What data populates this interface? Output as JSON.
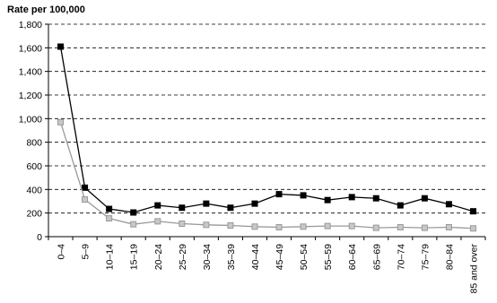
{
  "chart_data": {
    "type": "line",
    "title": "Rate per 100,000",
    "xlabel": "",
    "ylabel": "",
    "ylim": [
      0,
      1800
    ],
    "yticks": [
      0,
      200,
      400,
      600,
      800,
      1000,
      1200,
      1400,
      1600,
      1800
    ],
    "ytick_labels": [
      "0",
      "200",
      "400",
      "600",
      "800",
      "1,000",
      "1,200",
      "1,400",
      "1,600",
      "1,800"
    ],
    "grid": "horizontal-dashed",
    "legend": "none",
    "categories": [
      "0–4",
      "5–9",
      "10–14",
      "15–19",
      "20–24",
      "25–29",
      "30–34",
      "35–39",
      "40–44",
      "45–49",
      "50–54",
      "55–59",
      "60–64",
      "65–69",
      "70–74",
      "75–79",
      "80–84",
      "85 and over"
    ],
    "series": [
      {
        "color": "#000000",
        "marker_fill": "#000000",
        "values": [
          1610,
          415,
          235,
          205,
          265,
          245,
          280,
          245,
          280,
          360,
          350,
          310,
          335,
          325,
          265,
          325,
          275,
          215
        ]
      },
      {
        "color": "#999999",
        "marker_fill": "#c8c8c8",
        "values": [
          970,
          315,
          155,
          105,
          130,
          110,
          100,
          95,
          85,
          80,
          85,
          90,
          90,
          75,
          80,
          75,
          80,
          70
        ]
      }
    ]
  }
}
